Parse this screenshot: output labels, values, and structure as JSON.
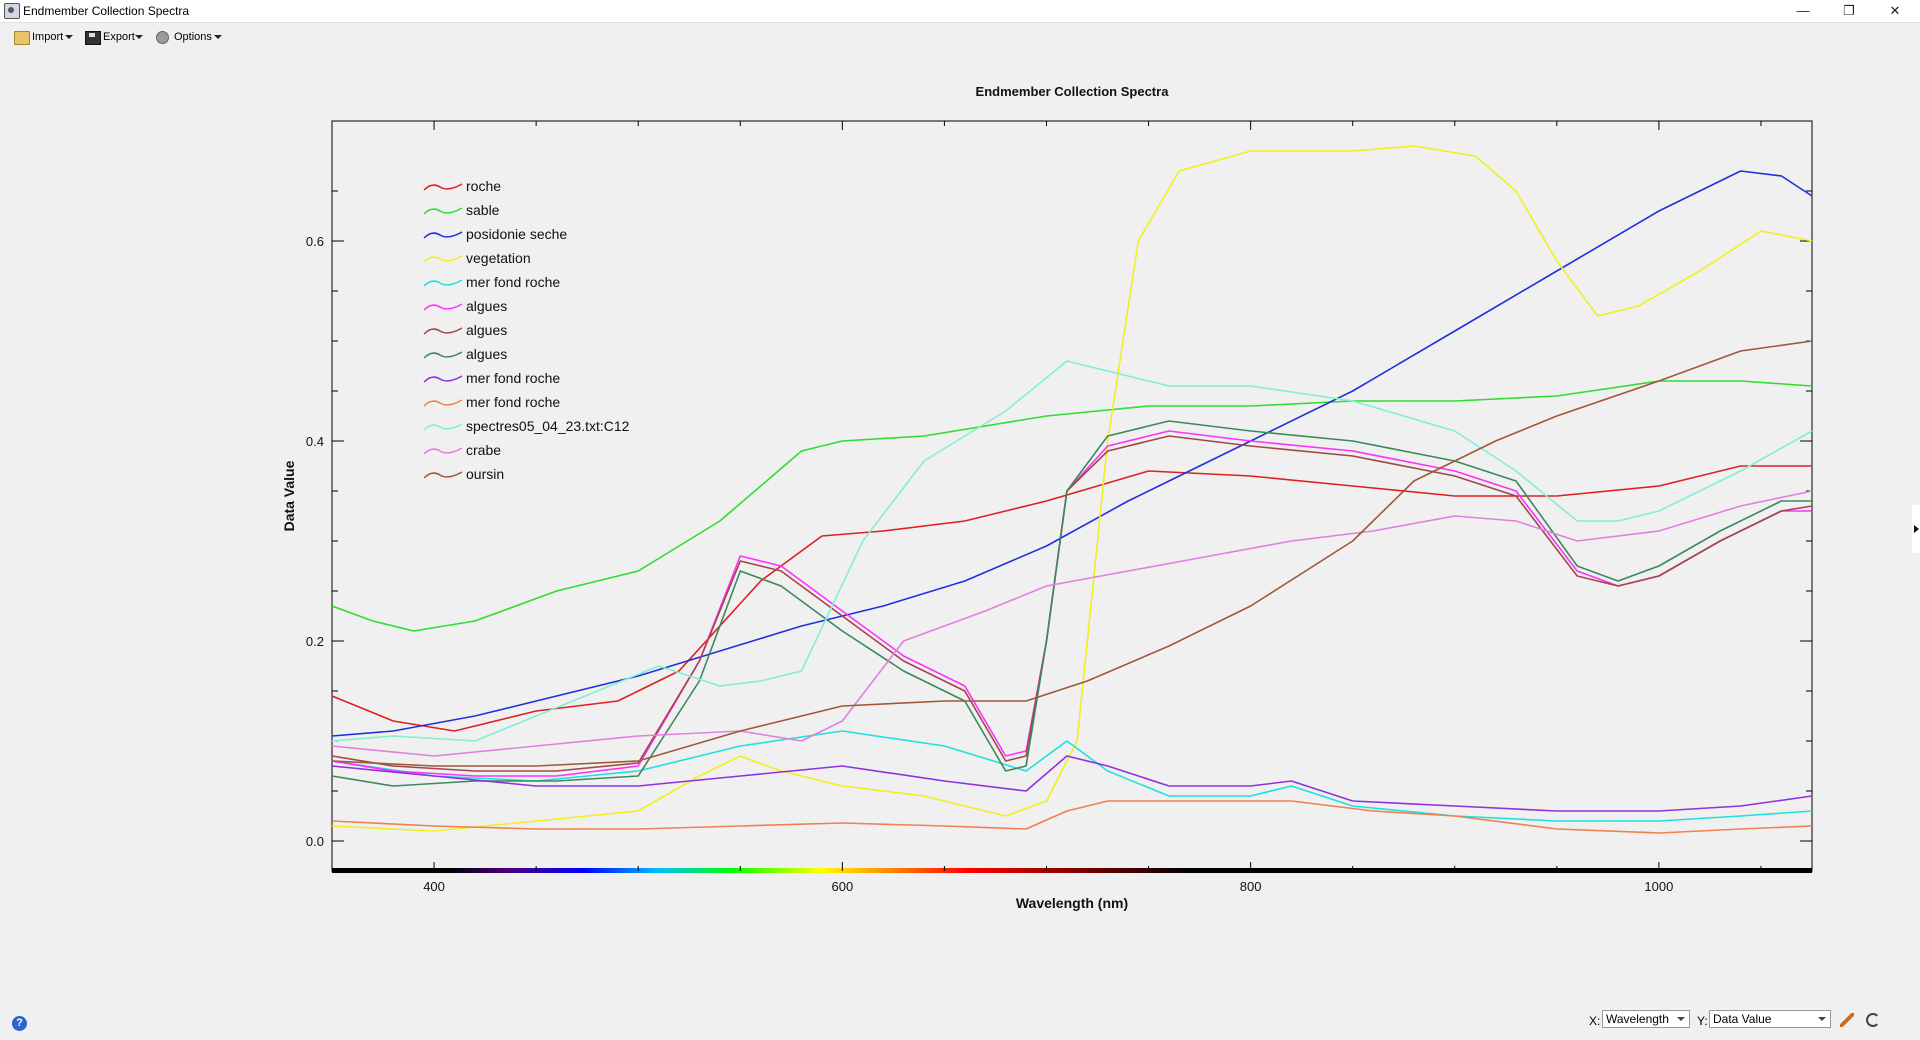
{
  "window": {
    "title": "Endmember Collection Spectra",
    "min_icon": "minimize-icon",
    "max_icon": "restore-icon",
    "close_icon": "close-icon"
  },
  "toolbar": {
    "import_label": "Import",
    "export_label": "Export",
    "options_label": "Options"
  },
  "chart_data": {
    "type": "line",
    "title": "Endmember Collection Spectra",
    "xlabel": "Wavelength (nm)",
    "ylabel": "Data Value",
    "xlim": [
      350,
      1075
    ],
    "ylim": [
      -0.03,
      0.72
    ],
    "x_ticks": [
      400,
      600,
      800,
      1000
    ],
    "y_ticks": [
      0.0,
      0.2,
      0.4,
      0.6
    ],
    "x_tick_labels": [
      "400",
      "600",
      "800",
      "1000"
    ],
    "y_tick_labels": [
      "0.0",
      "0.2",
      "0.4",
      "0.6"
    ],
    "legend_position": "top-left",
    "grid": false,
    "series": [
      {
        "name": "roche",
        "color": "#e02020",
        "points": [
          [
            350,
            0.145
          ],
          [
            380,
            0.12
          ],
          [
            410,
            0.11
          ],
          [
            450,
            0.13
          ],
          [
            490,
            0.14
          ],
          [
            520,
            0.17
          ],
          [
            560,
            0.26
          ],
          [
            590,
            0.305
          ],
          [
            620,
            0.31
          ],
          [
            660,
            0.32
          ],
          [
            700,
            0.34
          ],
          [
            750,
            0.37
          ],
          [
            800,
            0.365
          ],
          [
            850,
            0.355
          ],
          [
            900,
            0.345
          ],
          [
            950,
            0.345
          ],
          [
            1000,
            0.355
          ],
          [
            1040,
            0.375
          ],
          [
            1075,
            0.375
          ]
        ]
      },
      {
        "name": "sable",
        "color": "#30dd30",
        "points": [
          [
            350,
            0.235
          ],
          [
            370,
            0.22
          ],
          [
            390,
            0.21
          ],
          [
            420,
            0.22
          ],
          [
            460,
            0.25
          ],
          [
            500,
            0.27
          ],
          [
            540,
            0.32
          ],
          [
            580,
            0.39
          ],
          [
            600,
            0.4
          ],
          [
            640,
            0.405
          ],
          [
            700,
            0.425
          ],
          [
            750,
            0.435
          ],
          [
            800,
            0.435
          ],
          [
            850,
            0.44
          ],
          [
            900,
            0.44
          ],
          [
            950,
            0.445
          ],
          [
            1000,
            0.46
          ],
          [
            1040,
            0.46
          ],
          [
            1075,
            0.455
          ]
        ]
      },
      {
        "name": "posidonie seche",
        "color": "#2030dd",
        "points": [
          [
            350,
            0.105
          ],
          [
            380,
            0.11
          ],
          [
            420,
            0.125
          ],
          [
            460,
            0.145
          ],
          [
            500,
            0.165
          ],
          [
            540,
            0.19
          ],
          [
            580,
            0.215
          ],
          [
            620,
            0.235
          ],
          [
            660,
            0.26
          ],
          [
            700,
            0.295
          ],
          [
            740,
            0.34
          ],
          [
            760,
            0.36
          ],
          [
            800,
            0.4
          ],
          [
            850,
            0.45
          ],
          [
            900,
            0.51
          ],
          [
            950,
            0.57
          ],
          [
            1000,
            0.63
          ],
          [
            1040,
            0.67
          ],
          [
            1060,
            0.665
          ],
          [
            1075,
            0.645
          ]
        ]
      },
      {
        "name": "vegetation",
        "color": "#f0f020",
        "points": [
          [
            350,
            0.015
          ],
          [
            400,
            0.01
          ],
          [
            450,
            0.02
          ],
          [
            500,
            0.03
          ],
          [
            530,
            0.065
          ],
          [
            550,
            0.085
          ],
          [
            570,
            0.07
          ],
          [
            600,
            0.055
          ],
          [
            640,
            0.045
          ],
          [
            680,
            0.025
          ],
          [
            700,
            0.04
          ],
          [
            715,
            0.1
          ],
          [
            730,
            0.4
          ],
          [
            745,
            0.6
          ],
          [
            765,
            0.67
          ],
          [
            800,
            0.69
          ],
          [
            850,
            0.69
          ],
          [
            880,
            0.695
          ],
          [
            910,
            0.685
          ],
          [
            930,
            0.65
          ],
          [
            950,
            0.58
          ],
          [
            970,
            0.525
          ],
          [
            990,
            0.535
          ],
          [
            1020,
            0.57
          ],
          [
            1050,
            0.61
          ],
          [
            1075,
            0.6
          ]
        ]
      },
      {
        "name": "mer fond roche",
        "color": "#20e0e0",
        "points": [
          [
            350,
            0.08
          ],
          [
            400,
            0.065
          ],
          [
            450,
            0.06
          ],
          [
            500,
            0.07
          ],
          [
            550,
            0.095
          ],
          [
            600,
            0.11
          ],
          [
            650,
            0.095
          ],
          [
            690,
            0.07
          ],
          [
            710,
            0.1
          ],
          [
            730,
            0.07
          ],
          [
            760,
            0.045
          ],
          [
            800,
            0.045
          ],
          [
            820,
            0.055
          ],
          [
            850,
            0.035
          ],
          [
            900,
            0.025
          ],
          [
            950,
            0.02
          ],
          [
            1000,
            0.02
          ],
          [
            1040,
            0.025
          ],
          [
            1075,
            0.03
          ]
        ]
      },
      {
        "name": "algues",
        "color": "#ff30ff",
        "points": [
          [
            350,
            0.08
          ],
          [
            380,
            0.07
          ],
          [
            420,
            0.065
          ],
          [
            460,
            0.065
          ],
          [
            500,
            0.075
          ],
          [
            530,
            0.18
          ],
          [
            550,
            0.285
          ],
          [
            570,
            0.275
          ],
          [
            600,
            0.23
          ],
          [
            630,
            0.185
          ],
          [
            660,
            0.155
          ],
          [
            680,
            0.085
          ],
          [
            690,
            0.09
          ],
          [
            700,
            0.2
          ],
          [
            710,
            0.35
          ],
          [
            730,
            0.395
          ],
          [
            760,
            0.41
          ],
          [
            800,
            0.4
          ],
          [
            850,
            0.39
          ],
          [
            900,
            0.37
          ],
          [
            930,
            0.35
          ],
          [
            960,
            0.27
          ],
          [
            980,
            0.255
          ],
          [
            1000,
            0.265
          ],
          [
            1030,
            0.3
          ],
          [
            1060,
            0.33
          ],
          [
            1075,
            0.33
          ]
        ]
      },
      {
        "name": "algues",
        "color": "#a04848",
        "points": [
          [
            350,
            0.085
          ],
          [
            380,
            0.075
          ],
          [
            420,
            0.07
          ],
          [
            460,
            0.07
          ],
          [
            500,
            0.078
          ],
          [
            530,
            0.18
          ],
          [
            550,
            0.28
          ],
          [
            570,
            0.27
          ],
          [
            600,
            0.225
          ],
          [
            630,
            0.18
          ],
          [
            660,
            0.15
          ],
          [
            680,
            0.08
          ],
          [
            690,
            0.085
          ],
          [
            700,
            0.2
          ],
          [
            710,
            0.35
          ],
          [
            730,
            0.39
          ],
          [
            760,
            0.405
          ],
          [
            800,
            0.395
          ],
          [
            850,
            0.385
          ],
          [
            900,
            0.365
          ],
          [
            930,
            0.345
          ],
          [
            960,
            0.265
          ],
          [
            980,
            0.255
          ],
          [
            1000,
            0.265
          ],
          [
            1030,
            0.3
          ],
          [
            1060,
            0.33
          ],
          [
            1075,
            0.335
          ]
        ]
      },
      {
        "name": "algues",
        "color": "#3a8a5a",
        "points": [
          [
            350,
            0.065
          ],
          [
            380,
            0.055
          ],
          [
            420,
            0.06
          ],
          [
            460,
            0.06
          ],
          [
            500,
            0.065
          ],
          [
            530,
            0.16
          ],
          [
            550,
            0.27
          ],
          [
            570,
            0.255
          ],
          [
            600,
            0.21
          ],
          [
            630,
            0.17
          ],
          [
            660,
            0.14
          ],
          [
            680,
            0.07
          ],
          [
            690,
            0.075
          ],
          [
            700,
            0.2
          ],
          [
            710,
            0.35
          ],
          [
            730,
            0.405
          ],
          [
            760,
            0.42
          ],
          [
            800,
            0.41
          ],
          [
            850,
            0.4
          ],
          [
            900,
            0.38
          ],
          [
            930,
            0.36
          ],
          [
            960,
            0.275
          ],
          [
            980,
            0.26
          ],
          [
            1000,
            0.275
          ],
          [
            1030,
            0.31
          ],
          [
            1060,
            0.34
          ],
          [
            1075,
            0.34
          ]
        ]
      },
      {
        "name": "mer fond roche",
        "color": "#9030e0",
        "points": [
          [
            350,
            0.075
          ],
          [
            400,
            0.065
          ],
          [
            450,
            0.055
          ],
          [
            500,
            0.055
          ],
          [
            550,
            0.065
          ],
          [
            600,
            0.075
          ],
          [
            650,
            0.06
          ],
          [
            690,
            0.05
          ],
          [
            710,
            0.085
          ],
          [
            730,
            0.075
          ],
          [
            760,
            0.055
          ],
          [
            800,
            0.055
          ],
          [
            820,
            0.06
          ],
          [
            850,
            0.04
          ],
          [
            900,
            0.035
          ],
          [
            950,
            0.03
          ],
          [
            1000,
            0.03
          ],
          [
            1040,
            0.035
          ],
          [
            1075,
            0.045
          ]
        ]
      },
      {
        "name": "mer fond roche",
        "color": "#f08050",
        "points": [
          [
            350,
            0.02
          ],
          [
            400,
            0.015
          ],
          [
            450,
            0.012
          ],
          [
            500,
            0.012
          ],
          [
            550,
            0.015
          ],
          [
            600,
            0.018
          ],
          [
            650,
            0.015
          ],
          [
            690,
            0.012
          ],
          [
            710,
            0.03
          ],
          [
            730,
            0.04
          ],
          [
            780,
            0.04
          ],
          [
            820,
            0.04
          ],
          [
            860,
            0.03
          ],
          [
            900,
            0.025
          ],
          [
            950,
            0.012
          ],
          [
            1000,
            0.008
          ],
          [
            1040,
            0.012
          ],
          [
            1075,
            0.015
          ]
        ]
      },
      {
        "name": "spectres05_04_23.txt:C12",
        "color": "#80f0d0",
        "points": [
          [
            350,
            0.1
          ],
          [
            380,
            0.105
          ],
          [
            420,
            0.1
          ],
          [
            450,
            0.125
          ],
          [
            480,
            0.15
          ],
          [
            510,
            0.175
          ],
          [
            540,
            0.155
          ],
          [
            560,
            0.16
          ],
          [
            580,
            0.17
          ],
          [
            610,
            0.3
          ],
          [
            640,
            0.38
          ],
          [
            680,
            0.43
          ],
          [
            710,
            0.48
          ],
          [
            740,
            0.465
          ],
          [
            760,
            0.455
          ],
          [
            800,
            0.455
          ],
          [
            850,
            0.44
          ],
          [
            900,
            0.41
          ],
          [
            930,
            0.37
          ],
          [
            960,
            0.32
          ],
          [
            980,
            0.32
          ],
          [
            1000,
            0.33
          ],
          [
            1040,
            0.37
          ],
          [
            1075,
            0.41
          ]
        ]
      },
      {
        "name": "crabe",
        "color": "#e080e0",
        "points": [
          [
            350,
            0.095
          ],
          [
            400,
            0.085
          ],
          [
            450,
            0.095
          ],
          [
            500,
            0.105
          ],
          [
            550,
            0.11
          ],
          [
            580,
            0.1
          ],
          [
            600,
            0.12
          ],
          [
            630,
            0.2
          ],
          [
            670,
            0.23
          ],
          [
            700,
            0.255
          ],
          [
            740,
            0.27
          ],
          [
            780,
            0.285
          ],
          [
            820,
            0.3
          ],
          [
            860,
            0.31
          ],
          [
            900,
            0.325
          ],
          [
            930,
            0.32
          ],
          [
            960,
            0.3
          ],
          [
            1000,
            0.31
          ],
          [
            1040,
            0.335
          ],
          [
            1075,
            0.35
          ]
        ]
      },
      {
        "name": "oursin",
        "color": "#a05838",
        "points": [
          [
            350,
            0.08
          ],
          [
            400,
            0.075
          ],
          [
            450,
            0.075
          ],
          [
            500,
            0.08
          ],
          [
            550,
            0.11
          ],
          [
            600,
            0.135
          ],
          [
            650,
            0.14
          ],
          [
            690,
            0.14
          ],
          [
            720,
            0.16
          ],
          [
            760,
            0.195
          ],
          [
            800,
            0.235
          ],
          [
            850,
            0.3
          ],
          [
            880,
            0.36
          ],
          [
            920,
            0.4
          ],
          [
            950,
            0.425
          ],
          [
            1000,
            0.46
          ],
          [
            1040,
            0.49
          ],
          [
            1075,
            0.5
          ]
        ]
      }
    ]
  },
  "bottom": {
    "help_icon": "help-icon",
    "x_label": "X:",
    "x_value": "Wavelength",
    "y_label": "Y:",
    "y_value": "Data Value",
    "pencil_icon": "pencil-icon",
    "refresh_icon": "refresh-icon"
  }
}
